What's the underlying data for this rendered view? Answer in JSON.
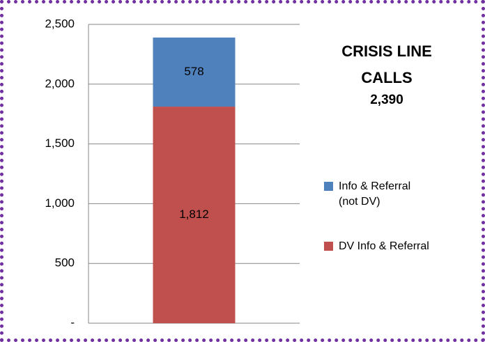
{
  "chart_data": {
    "type": "bar",
    "stacked": true,
    "title": "CRISIS LINE CALLS",
    "annotation": "2,390",
    "categories": [
      null
    ],
    "series": [
      {
        "name": "DV Info & Referral",
        "color": "#c0504d",
        "values": [
          1812
        ],
        "value_labels": [
          "1,812"
        ]
      },
      {
        "name": "Info & Referral (not DV)",
        "color": "#4f81bd",
        "values": [
          578
        ]
      }
    ],
    "ylim": [
      0,
      2500
    ],
    "yticks": [
      {
        "value": 0,
        "label": "-"
      },
      500,
      {
        "value": 1000,
        "label": "1,000"
      },
      {
        "value": 1500,
        "label": "1,500"
      },
      {
        "value": 2000,
        "label": "2,000"
      },
      {
        "value": 2500,
        "label": "2,500"
      }
    ],
    "grid": true
  }
}
